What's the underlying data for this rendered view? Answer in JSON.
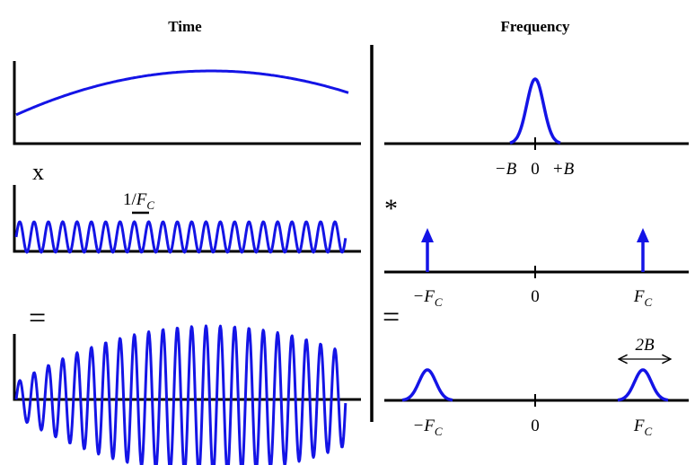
{
  "headers": {
    "time": "Time",
    "frequency": "Frequency"
  },
  "operators": {
    "multiply": "x",
    "equals_time": "=",
    "convolve": "*",
    "equals_freq": "="
  },
  "time_axis": {
    "period_label_num": "1/",
    "period_label_sym": "F",
    "period_label_sub": "C"
  },
  "freq_panel_1": {
    "neg": "−B",
    "zero": "0",
    "pos": "+B"
  },
  "freq_panel_2": {
    "neg": "−F",
    "neg_sub": "C",
    "zero": "0",
    "pos": "F",
    "pos_sub": "C"
  },
  "freq_panel_3": {
    "neg": "−F",
    "neg_sub": "C",
    "zero": "0",
    "pos": "F",
    "pos_sub": "C",
    "bandwidth": "2B"
  },
  "colors": {
    "signal": "#1414e6",
    "axis": "#000000"
  }
}
